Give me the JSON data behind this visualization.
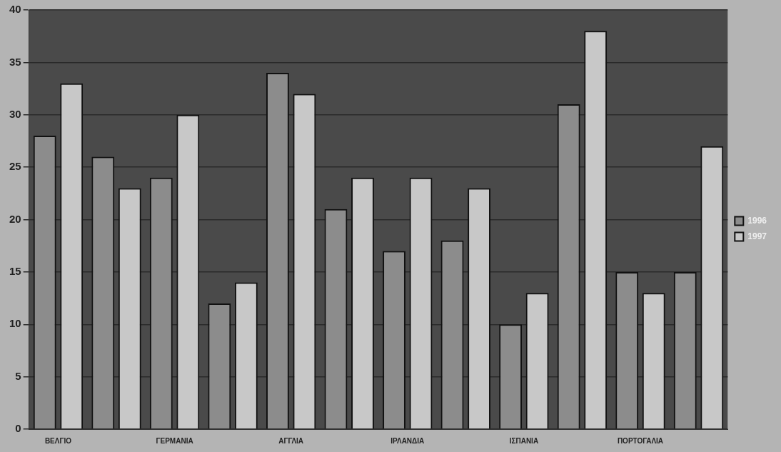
{
  "chart_data": {
    "type": "bar",
    "categories": [
      "ΒΕΛΓΙΟ",
      null,
      "ΓΕΡΜΑΝΙΑ",
      null,
      "ΑΓΓΛΙΑ",
      null,
      "ΙΡΛΑΝΔΙΑ",
      null,
      "ΙΣΠΑΝΙΑ",
      null,
      "ΠΟΡΤΟΓΑΛΙΑ",
      null
    ],
    "series": [
      {
        "name": "1996",
        "color": "#8c8c8c",
        "values": [
          28,
          26,
          24,
          12,
          34,
          21,
          17,
          18,
          10,
          31,
          15,
          15
        ]
      },
      {
        "name": "1997",
        "color": "#c8c8c8",
        "values": [
          33,
          23,
          30,
          14,
          32,
          24,
          24,
          23,
          13,
          38,
          13,
          27
        ]
      }
    ],
    "ylim": [
      0,
      40
    ],
    "yticks": [
      0,
      5,
      10,
      15,
      20,
      25,
      30,
      35,
      40
    ],
    "grid": "y",
    "legend": "right"
  }
}
